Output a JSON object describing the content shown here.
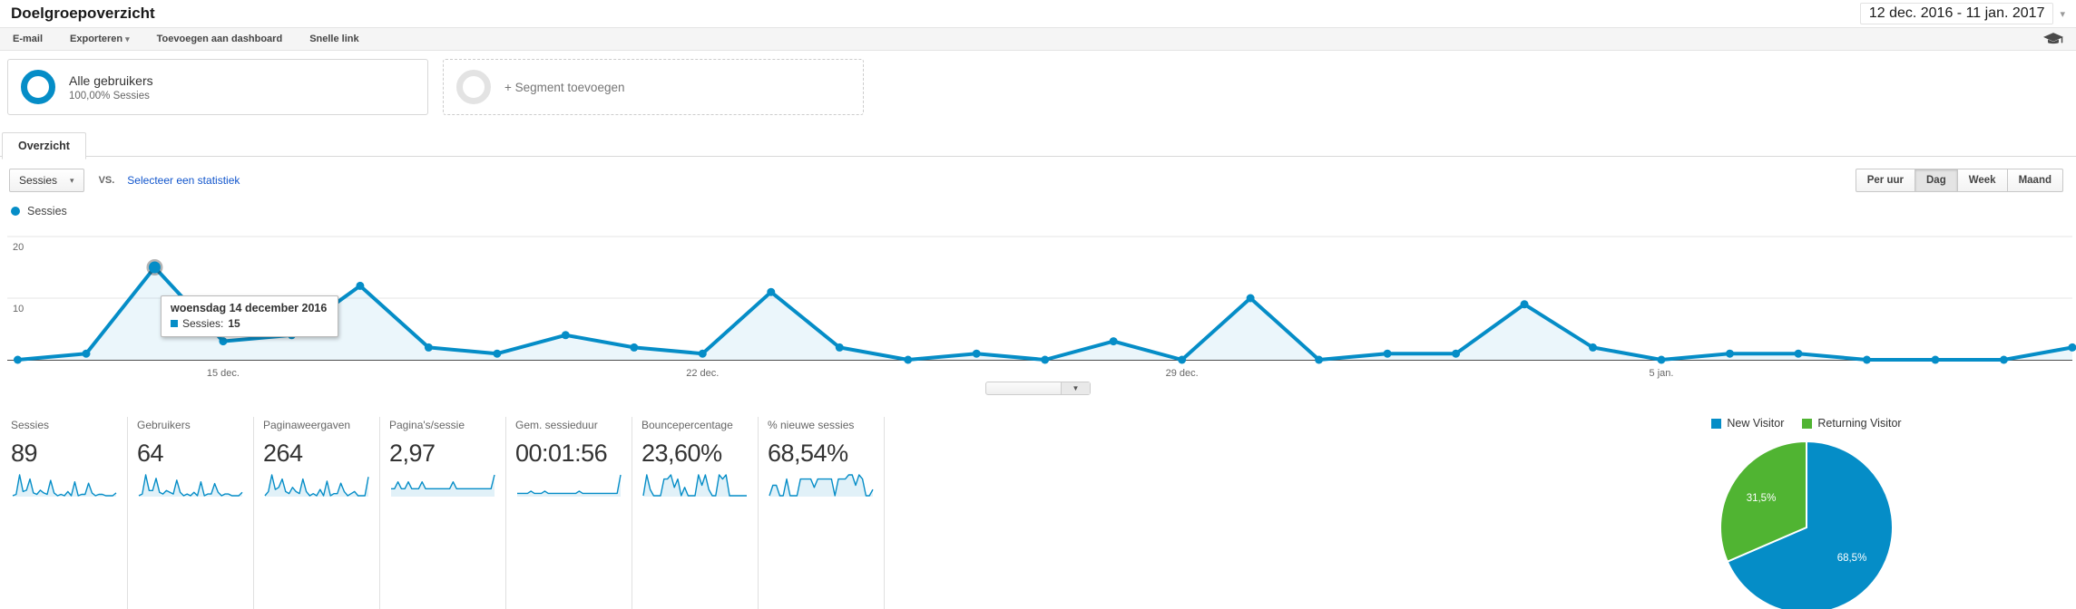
{
  "header": {
    "title": "Doelgroepoverzicht",
    "date_range": "12 dec. 2016 - 11 jan. 2017"
  },
  "icons": {
    "dropdown": "▾",
    "handle": "▼"
  },
  "toolbar": {
    "items": [
      "E-mail",
      "Exporteren",
      "Toevoegen aan dashboard",
      "Snelle link"
    ]
  },
  "segments": {
    "primary": {
      "name": "Alle gebruikers",
      "detail": "100,00% Sessies"
    },
    "add_label": "+ Segment toevoegen"
  },
  "tabs": {
    "overview": "Overzicht"
  },
  "controls": {
    "metric_selector": "Sessies",
    "vs_label": "VS.",
    "select_metric_link": "Selecteer een statistiek",
    "granularity": [
      "Per uur",
      "Dag",
      "Week",
      "Maand"
    ],
    "granularity_active": "Dag"
  },
  "chart_legend": "Sessies",
  "tooltip": {
    "title": "woensdag 14 december 2016",
    "series": "Sessies:",
    "value": "15"
  },
  "chart_data": [
    {
      "type": "line",
      "title": "Sessies",
      "categories": [
        "12 dec.",
        "13 dec.",
        "14 dec.",
        "15 dec.",
        "16 dec.",
        "17 dec.",
        "18 dec.",
        "19 dec.",
        "20 dec.",
        "21 dec.",
        "22 dec.",
        "23 dec.",
        "24 dec.",
        "25 dec.",
        "26 dec.",
        "27 dec.",
        "28 dec.",
        "29 dec.",
        "30 dec.",
        "31 dec.",
        "1 jan.",
        "2 jan.",
        "3 jan.",
        "4 jan.",
        "5 jan.",
        "6 jan.",
        "7 jan.",
        "8 jan.",
        "9 jan.",
        "10 jan.",
        "11 jan."
      ],
      "values": [
        0,
        1,
        15,
        3,
        4,
        12,
        2,
        1,
        4,
        2,
        1,
        11,
        2,
        0,
        1,
        0,
        3,
        0,
        10,
        0,
        1,
        1,
        9,
        2,
        0,
        1,
        1,
        0,
        0,
        0,
        2
      ],
      "ylim": [
        0,
        20
      ],
      "yticks": [
        10,
        20
      ],
      "xticks": [
        {
          "label": "15 dec.",
          "index": 3
        },
        {
          "label": "22 dec.",
          "index": 10
        },
        {
          "label": "29 dec.",
          "index": 17
        },
        {
          "label": "5 jan.",
          "index": 24
        }
      ],
      "highlight": {
        "index": 2,
        "value": 15
      },
      "grid": true,
      "line_color": "#058dc7"
    },
    {
      "type": "pie",
      "labels": [
        "New Visitor",
        "Returning Visitor"
      ],
      "values": [
        68.5,
        31.5
      ],
      "display_labels": [
        "68,5%",
        "31,5%"
      ],
      "colors": [
        "#058dc7",
        "#50b432"
      ],
      "legend_position": "top"
    }
  ],
  "metrics": [
    {
      "label": "Sessies",
      "value": "89",
      "spark": [
        0,
        1,
        15,
        3,
        4,
        12,
        2,
        1,
        4,
        2,
        1,
        11,
        2,
        0,
        1,
        0,
        3,
        0,
        10,
        0,
        1,
        1,
        9,
        2,
        0,
        1,
        1,
        0,
        0,
        0,
        2
      ]
    },
    {
      "label": "Gebruikers",
      "value": "64",
      "spark": [
        0,
        1,
        12,
        3,
        3,
        10,
        2,
        1,
        3,
        2,
        1,
        9,
        2,
        0,
        1,
        0,
        2,
        0,
        8,
        0,
        1,
        1,
        7,
        2,
        0,
        1,
        1,
        0,
        0,
        0,
        2
      ]
    },
    {
      "label": "Paginaweergaven",
      "value": "264",
      "spark": [
        0,
        2,
        10,
        3,
        4,
        8,
        2,
        1,
        4,
        2,
        1,
        8,
        2,
        0,
        1,
        0,
        3,
        0,
        7,
        0,
        1,
        1,
        6,
        2,
        0,
        1,
        2,
        0,
        0,
        0,
        9
      ]
    },
    {
      "label": "Pagina's/sessie",
      "value": "2,97",
      "spark": [
        1,
        1,
        2,
        1,
        1,
        2,
        1,
        1,
        1,
        2,
        1,
        1,
        1,
        1,
        1,
        1,
        1,
        1,
        2,
        1,
        1,
        1,
        1,
        1,
        1,
        1,
        1,
        1,
        1,
        1,
        3
      ]
    },
    {
      "label": "Gem. sessieduur",
      "value": "00:01:56",
      "spark": [
        1,
        1,
        1,
        1,
        2,
        1,
        1,
        1,
        2,
        1,
        1,
        1,
        1,
        1,
        1,
        1,
        1,
        1,
        2,
        1,
        1,
        1,
        1,
        1,
        1,
        1,
        1,
        1,
        1,
        1,
        9
      ]
    },
    {
      "label": "Bouncepercentage",
      "value": "23,60%",
      "spark": [
        0,
        10,
        3,
        0,
        0,
        0,
        8,
        8,
        10,
        4,
        8,
        0,
        4,
        0,
        0,
        0,
        10,
        5,
        10,
        3,
        0,
        0,
        10,
        8,
        10,
        0,
        0,
        0,
        0,
        0,
        0
      ]
    },
    {
      "label": "% nieuwe sessies",
      "value": "68,54%",
      "spark": [
        0,
        5,
        5,
        0,
        0,
        8,
        0,
        0,
        0,
        8,
        8,
        8,
        8,
        4,
        8,
        8,
        8,
        8,
        8,
        0,
        8,
        8,
        8,
        10,
        10,
        5,
        10,
        8,
        0,
        0,
        3
      ]
    }
  ],
  "colors": {
    "accent_blue": "#058dc7",
    "accent_green": "#50b432",
    "link": "#1155cc"
  }
}
